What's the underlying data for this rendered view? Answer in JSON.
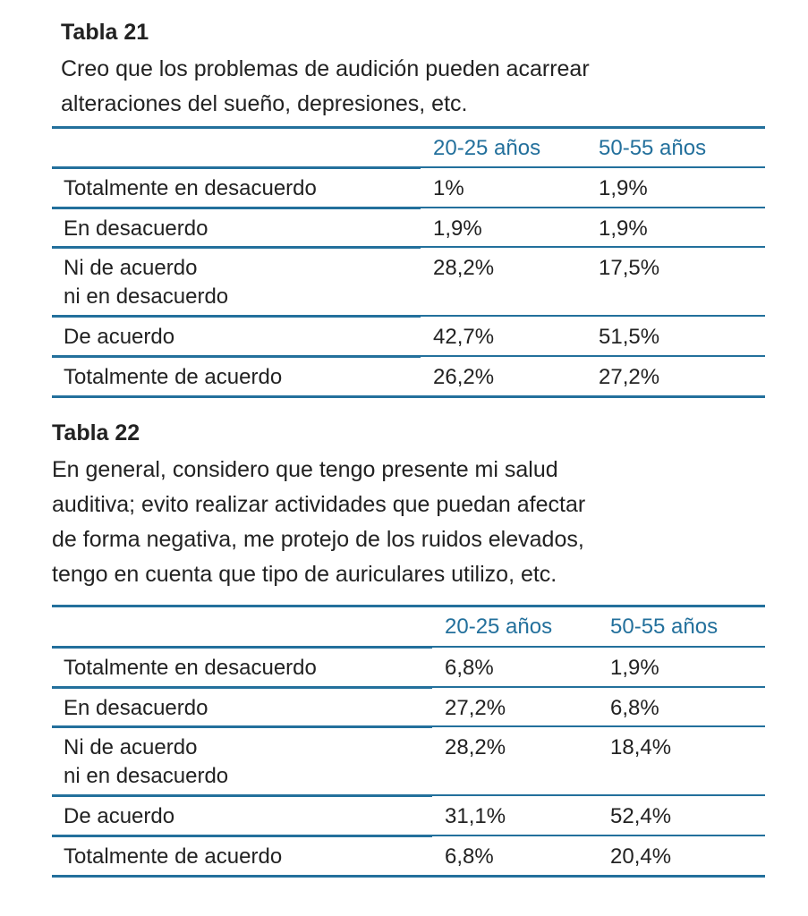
{
  "tables": [
    {
      "title": "Tabla 21",
      "question": [
        "Creo que los problemas de audición pueden acarrear",
        "alteraciones del sueño, depresiones, etc."
      ],
      "columns": [
        "",
        "20-25 años",
        "50-55 años"
      ],
      "rows": [
        {
          "label": [
            "Totalmente en desacuerdo"
          ],
          "v1": "1%",
          "v2": "1,9%"
        },
        {
          "label": [
            "En desacuerdo"
          ],
          "v1": "1,9%",
          "v2": "1,9%"
        },
        {
          "label": [
            "Ni de acuerdo",
            "ni en desacuerdo"
          ],
          "v1": "28,2%",
          "v2": "17,5%"
        },
        {
          "label": [
            "De acuerdo"
          ],
          "v1": "42,7%",
          "v2": "51,5%"
        },
        {
          "label": [
            "Totalmente de acuerdo"
          ],
          "v1": "26,2%",
          "v2": "27,2%"
        }
      ]
    },
    {
      "title": "Tabla 22",
      "question": [
        "En general, considero que tengo presente mi salud",
        "auditiva; evito realizar actividades que puedan afectar",
        "de forma negativa, me protejo de los ruidos elevados,",
        "tengo en cuenta que tipo de auriculares utilizo, etc."
      ],
      "columns": [
        "",
        "20-25 años",
        "50-55 años"
      ],
      "rows": [
        {
          "label": [
            "Totalmente en desacuerdo"
          ],
          "v1": "6,8%",
          "v2": "1,9%"
        },
        {
          "label": [
            "En desacuerdo"
          ],
          "v1": "27,2%",
          "v2": "6,8%"
        },
        {
          "label": [
            "Ni de acuerdo",
            "ni en desacuerdo"
          ],
          "v1": "28,2%",
          "v2": "18,4%"
        },
        {
          "label": [
            "De acuerdo"
          ],
          "v1": "31,1%",
          "v2": "52,4%"
        },
        {
          "label": [
            "Totalmente de acuerdo"
          ],
          "v1": "6,8%",
          "v2": "20,4%"
        }
      ]
    }
  ],
  "accent_color": "#23709c"
}
